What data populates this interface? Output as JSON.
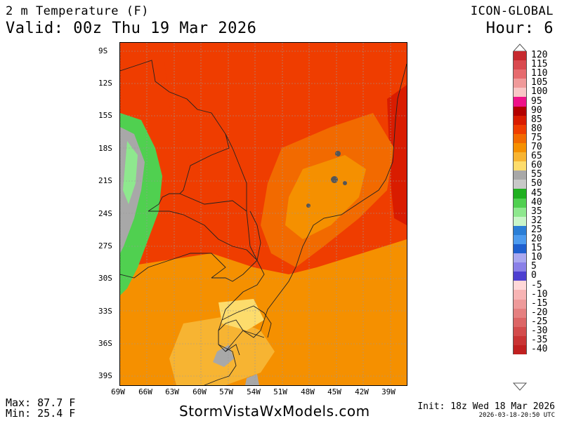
{
  "header": {
    "title": "2 m Temperature (F)",
    "valid": "Valid: 00z Thu 19 Mar 2026",
    "model": "ICON-GLOBAL",
    "hour": "Hour: 6"
  },
  "map": {
    "lat_labels": [
      "9S",
      "12S",
      "15S",
      "18S",
      "21S",
      "24S",
      "27S",
      "30S",
      "33S",
      "36S",
      "39S"
    ],
    "lon_labels": [
      "69W",
      "66W",
      "63W",
      "60W",
      "57W",
      "54W",
      "51W",
      "48W",
      "45W",
      "42W",
      "39W"
    ]
  },
  "legend": {
    "values": [
      "120",
      "115",
      "110",
      "105",
      "100",
      "95",
      "90",
      "85",
      "80",
      "75",
      "70",
      "65",
      "60",
      "55",
      "50",
      "45",
      "40",
      "35",
      "32",
      "25",
      "20",
      "15",
      "10",
      "5",
      "0",
      "-5",
      "-10",
      "-15",
      "-20",
      "-25",
      "-30",
      "-35",
      "-40"
    ],
    "colors": [
      "#c62a2f",
      "#d94a4f",
      "#e66b6e",
      "#f09a9a",
      "#f9c6c6",
      "#ee1289",
      "#b30000",
      "#d91c00",
      "#ef3d00",
      "#f26a00",
      "#f59000",
      "#f7b432",
      "#fddc6c",
      "#a8a8a8",
      "#c8c8c8",
      "#20b020",
      "#50d050",
      "#8ee88e",
      "#c9f5c9",
      "#2a7ed6",
      "#4d9bef",
      "#1e5fcf",
      "#aaa8f0",
      "#8a80e8",
      "#4d3fd0",
      "#ffd8d8",
      "#f7b4b4",
      "#ee9a9a",
      "#e58080",
      "#dc6666",
      "#d34c4c",
      "#c93434",
      "#c02020"
    ]
  },
  "stats": {
    "max": "Max: 87.7 F",
    "min": "Min: 25.4 F"
  },
  "footer": {
    "site": "StormVistaWxModels.com",
    "init": "Init: 18z Wed 18 Mar 2026",
    "stamp": "2026-03-18-20:50 UTC"
  }
}
